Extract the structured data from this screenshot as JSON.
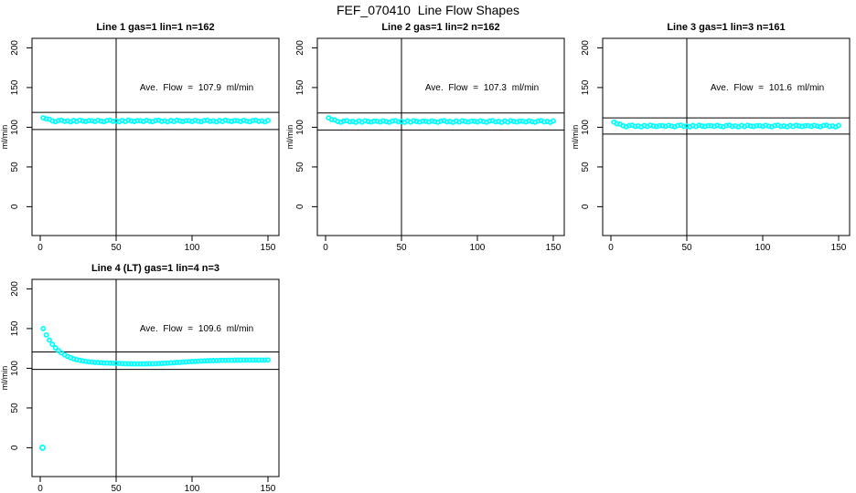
{
  "page_title": "FEF_070410  Line Flow Shapes",
  "colors": {
    "data_points": "#00FFFF",
    "axis": "#000000",
    "background": "#FFFFFF"
  },
  "axes_shared": {
    "x_ticks": [
      0,
      50,
      100,
      150
    ],
    "y_ticks": [
      0,
      50,
      100,
      150,
      200
    ],
    "y_axis_label": "ml/min",
    "xlim": [
      0,
      150
    ],
    "ylim": [
      0,
      200
    ],
    "grid": "off",
    "vertical_ref_line_x": 50
  },
  "chart_data": [
    {
      "type": "scatter",
      "id": "line-1",
      "title": "Line 1 gas=1 lin=1 n=162",
      "annotation": "Ave. Flow =  107.9  ml/min",
      "ave_flow_ml_min": 107.9,
      "ref_line_upper": 118.7,
      "ref_line_lower": 97.1,
      "vline_x": 50,
      "x": {
        "start": 2,
        "step": 2
      },
      "y": [
        111.8,
        110.6,
        110.1,
        108.1,
        107.0,
        108.4,
        108.9,
        107.5,
        108.0,
        106.9,
        108.5,
        107.2,
        108.8,
        107.9,
        107.3,
        108.3,
        108.2,
        107.4,
        108.7,
        107.7,
        107.0,
        108.4,
        108.9,
        107.5,
        108.0,
        106.9,
        108.5,
        107.2,
        108.8,
        107.9,
        107.3,
        108.3,
        108.2,
        107.4,
        108.7,
        107.7,
        107.0,
        108.4,
        108.9,
        107.5,
        108.0,
        106.9,
        108.5,
        107.2,
        108.8,
        107.9,
        107.3,
        108.3,
        108.2,
        107.4,
        108.7,
        107.7,
        107.0,
        108.4,
        108.9,
        107.5,
        108.0,
        106.9,
        108.5,
        107.2,
        108.8,
        107.9,
        107.3,
        108.3,
        108.2,
        107.4,
        108.7,
        107.7,
        107.0,
        108.4,
        108.9,
        107.5,
        108.0,
        106.9,
        108.5
      ],
      "outliers": []
    },
    {
      "type": "scatter",
      "id": "line-2",
      "title": "Line 2 gas=1 lin=2 n=162",
      "annotation": "Ave. Flow =  107.3  ml/min",
      "ave_flow_ml_min": 107.3,
      "ref_line_upper": 118.0,
      "ref_line_lower": 96.6,
      "vline_x": 50,
      "x": {
        "start": 2,
        "step": 2
      },
      "y": [
        111.8,
        109.8,
        109.3,
        107.4,
        106.4,
        107.8,
        108.3,
        106.9,
        107.4,
        106.3,
        107.9,
        106.6,
        108.2,
        107.3,
        106.7,
        107.7,
        107.6,
        106.8,
        108.1,
        107.1,
        106.4,
        107.8,
        108.3,
        106.9,
        107.4,
        106.3,
        107.9,
        106.6,
        108.2,
        107.3,
        106.7,
        107.7,
        107.6,
        106.8,
        108.1,
        107.1,
        106.4,
        107.8,
        108.3,
        106.9,
        107.4,
        106.3,
        107.9,
        106.6,
        108.2,
        107.3,
        106.7,
        107.7,
        107.6,
        106.8,
        108.1,
        107.1,
        106.4,
        107.8,
        108.3,
        106.9,
        107.4,
        106.3,
        107.9,
        106.6,
        108.2,
        107.3,
        106.7,
        107.7,
        107.6,
        106.8,
        108.1,
        107.1,
        106.4,
        107.8,
        108.3,
        106.9,
        107.4,
        106.3,
        107.9
      ],
      "outliers": []
    },
    {
      "type": "scatter",
      "id": "line-3",
      "title": "Line 3 gas=1 lin=3 n=161",
      "annotation": "Ave. Flow =  101.6  ml/min",
      "ave_flow_ml_min": 101.6,
      "ref_line_upper": 111.8,
      "ref_line_lower": 91.4,
      "vline_x": 50,
      "x": {
        "start": 2,
        "step": 2
      },
      "y": [
        106.5,
        104.5,
        104.0,
        101.9,
        100.7,
        102.1,
        102.6,
        101.2,
        101.7,
        100.6,
        102.2,
        100.9,
        102.5,
        101.6,
        101.0,
        102.0,
        101.9,
        101.1,
        102.4,
        101.4,
        100.7,
        102.1,
        102.6,
        101.2,
        101.7,
        100.6,
        102.2,
        100.9,
        102.5,
        101.6,
        101.0,
        102.0,
        101.9,
        101.1,
        102.4,
        101.4,
        100.7,
        102.1,
        102.6,
        101.2,
        101.7,
        100.6,
        102.2,
        100.9,
        102.5,
        101.6,
        101.0,
        102.0,
        101.9,
        101.1,
        102.4,
        101.4,
        100.7,
        102.1,
        102.6,
        101.2,
        101.7,
        100.6,
        102.2,
        100.9,
        102.5,
        101.6,
        101.0,
        102.0,
        101.9,
        101.1,
        102.4,
        101.4,
        100.7,
        102.1,
        102.6,
        101.2,
        101.7,
        100.6,
        102.2
      ],
      "outliers": []
    },
    {
      "type": "scatter",
      "id": "line-4",
      "title": "Line 4 (LT) gas=1 lin=4 n=3",
      "annotation": "Ave. Flow =  109.6  ml/min",
      "ave_flow_ml_min": 109.6,
      "ref_line_upper": 120.6,
      "ref_line_lower": 98.6,
      "vline_x": 50,
      "x": {
        "start": 2,
        "step": 2
      },
      "y": [
        150.0,
        142.0,
        135.5,
        130.1,
        125.8,
        122.2,
        119.3,
        116.9,
        114.9,
        113.3,
        112.0,
        110.9,
        110.0,
        109.3,
        108.7,
        108.2,
        107.8,
        107.5,
        107.2,
        107.0,
        106.8,
        106.7,
        106.5,
        106.4,
        106.3,
        106.1,
        106.0,
        105.8,
        105.7,
        105.6,
        105.6,
        105.5,
        105.5,
        105.6,
        105.6,
        105.7,
        105.8,
        105.9,
        106.0,
        106.2,
        106.4,
        106.6,
        106.8,
        107.0,
        107.3,
        107.5,
        107.8,
        108.0,
        108.3,
        108.5,
        108.7,
        108.9,
        109.1,
        109.3,
        109.4,
        109.6,
        109.7,
        109.8,
        109.9,
        110.0,
        110.0,
        110.1,
        110.1,
        110.2,
        110.2,
        110.2,
        110.3,
        110.3,
        110.3,
        110.3,
        110.4,
        110.4,
        110.4,
        110.4,
        110.5
      ],
      "outliers": [
        [
          1.5,
          0
        ]
      ]
    }
  ]
}
